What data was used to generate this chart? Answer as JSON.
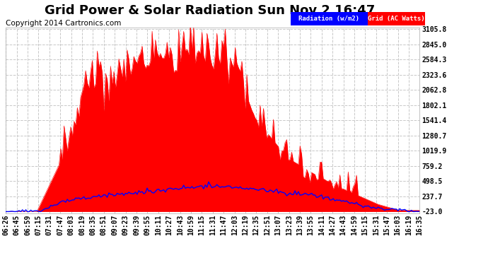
{
  "title": "Grid Power & Solar Radiation Sun Nov 2 16:47",
  "copyright": "Copyright 2014 Cartronics.com",
  "background_color": "#ffffff",
  "plot_bg_color": "#ffffff",
  "grid_color": "#c8c8c8",
  "ytick_labels": [
    "3105.8",
    "2845.0",
    "2584.3",
    "2323.6",
    "2062.8",
    "1802.1",
    "1541.4",
    "1280.7",
    "1019.9",
    "759.2",
    "498.5",
    "237.7",
    "-23.0"
  ],
  "ytick_values": [
    3105.8,
    2845.0,
    2584.3,
    2323.6,
    2062.8,
    1802.1,
    1541.4,
    1280.7,
    1019.9,
    759.2,
    498.5,
    237.7,
    -23.0
  ],
  "ymin": -23.0,
  "ymax": 3105.8,
  "xtick_labels": [
    "06:26",
    "06:45",
    "06:59",
    "07:15",
    "07:31",
    "07:47",
    "08:03",
    "08:19",
    "08:35",
    "08:51",
    "09:07",
    "09:23",
    "09:39",
    "09:55",
    "10:11",
    "10:27",
    "10:43",
    "10:59",
    "11:15",
    "11:31",
    "11:47",
    "12:03",
    "12:19",
    "12:35",
    "12:51",
    "13:07",
    "13:23",
    "13:39",
    "13:55",
    "14:11",
    "14:27",
    "14:43",
    "14:59",
    "15:15",
    "15:31",
    "15:47",
    "16:03",
    "16:19",
    "16:35"
  ],
  "red_fill_color": "#ff0000",
  "blue_line_color": "#0000ff",
  "legend_radiation_bg": "#0000ff",
  "legend_grid_bg": "#ff0000",
  "legend_radiation_text": "Radiation (w/m2)",
  "legend_grid_text": "Grid (AC Watts)",
  "title_fontsize": 13,
  "axis_fontsize": 7,
  "copyright_fontsize": 7.5
}
